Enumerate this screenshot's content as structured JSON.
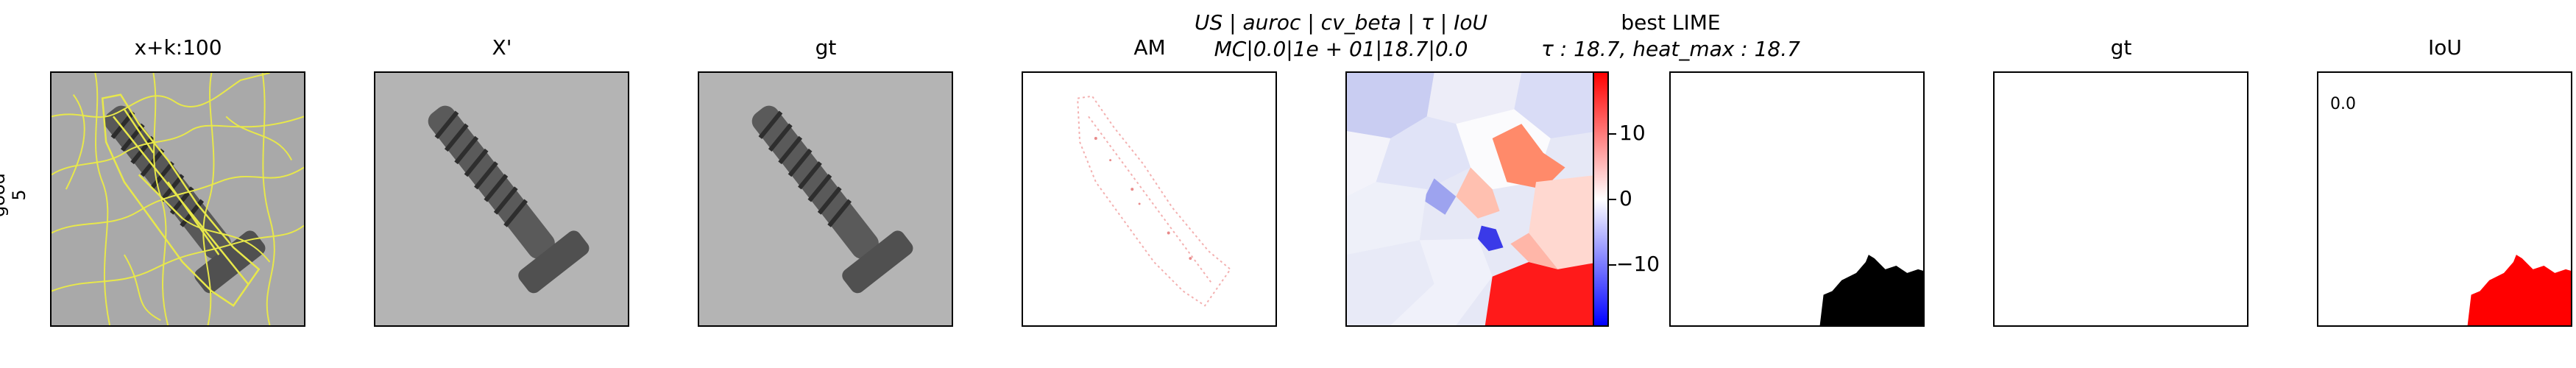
{
  "row_label": {
    "line1": "good",
    "line2": "5"
  },
  "panels": {
    "p1": {
      "title": "x+k:100"
    },
    "p2": {
      "title": "X'"
    },
    "p3": {
      "title": "gt"
    },
    "p4": {
      "title": "AM"
    },
    "p5": {
      "title_line1": "US | auroc | cv_beta | τ | IoU",
      "title_line2": "MC|0.0|1e + 01|18.7|0.0"
    },
    "p6": {
      "title_line1": "best LIME",
      "title_line2": "τ : 18.7, heat_max : 18.7"
    },
    "p7": {
      "title": "gt"
    },
    "p8": {
      "title": "IoU",
      "value": "0.0"
    }
  },
  "colorbar": {
    "ticks": [
      "10",
      "0",
      "−10"
    ],
    "min": -18.7,
    "max": 18.7
  },
  "colors": {
    "segment_lines": "#e8e84a",
    "mask_black": "#000000",
    "mask_red": "#ff0000"
  }
}
